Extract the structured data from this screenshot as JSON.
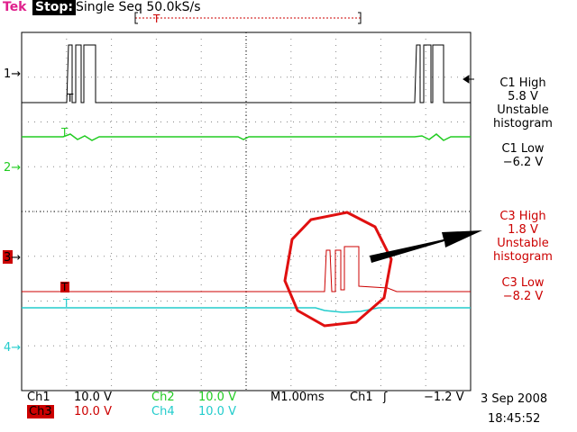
{
  "header": {
    "brand": "Tek",
    "state": "Stop:",
    "acquisition": "Single Seq  50.0kS/s",
    "trigger_marker": "T"
  },
  "channel_markers": [
    "1→",
    "2→",
    "3→",
    "4→"
  ],
  "trace_labels": {
    "ch1": "T",
    "ch2": "T",
    "ch3": "T",
    "ch4": "T"
  },
  "measurements": {
    "c1_high": {
      "label": "C1 High",
      "value": "5.8 V",
      "status1": "Unstable",
      "status2": "histogram"
    },
    "c1_low": {
      "label": "C1 Low",
      "value": "−6.2 V"
    },
    "c3_high": {
      "label": "C3 High",
      "value": "1.8 V",
      "status1": "Unstable",
      "status2": "histogram"
    },
    "c3_low": {
      "label": "C3 Low",
      "value": "−8.2 V"
    }
  },
  "bottom": {
    "ch1": "Ch1",
    "ch1_scale": "10.0 V",
    "ch2": "Ch2",
    "ch2_scale": "10.0 V",
    "ch3": "Ch3",
    "ch3_scale": "10.0 V",
    "ch4": "Ch4",
    "ch4_scale": "10.0 V",
    "timebase": "M1.00ms",
    "trigger_source": "Ch1",
    "trigger_slope": "ʃ",
    "trigger_level": "−1.2 V",
    "date": "3 Sep 2008",
    "time": "18:45:52"
  },
  "colors": {
    "ch1": "#000000",
    "ch2": "#22cc22",
    "ch3": "#cc0000",
    "ch4": "#22cccc",
    "brand": "#e0208c",
    "annotation": "#e01010"
  }
}
